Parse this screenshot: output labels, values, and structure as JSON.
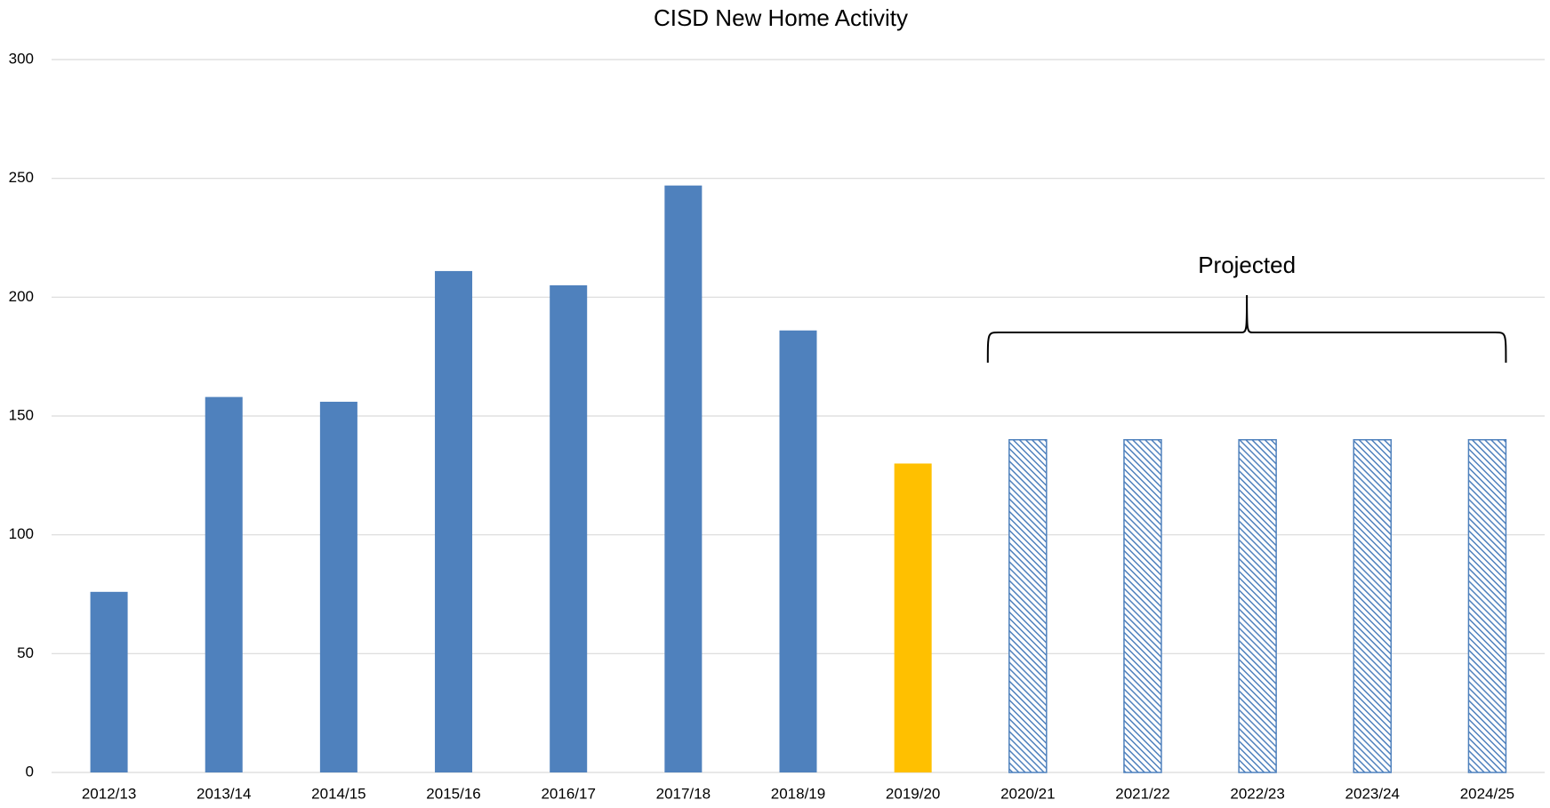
{
  "chart_data": {
    "type": "bar",
    "title": "CISD New Home Activity",
    "categories": [
      "2012/13",
      "2013/14",
      "2014/15",
      "2015/16",
      "2016/17",
      "2017/18",
      "2018/19",
      "2019/20",
      "2020/21",
      "2021/22",
      "2022/23",
      "2023/24",
      "2024/25"
    ],
    "values": [
      76,
      158,
      156,
      211,
      205,
      247,
      186,
      130,
      140,
      140,
      140,
      140,
      140
    ],
    "colors": [
      "#4f81bd",
      "#4f81bd",
      "#4f81bd",
      "#4f81bd",
      "#4f81bd",
      "#4f81bd",
      "#4f81bd",
      "#ffc000",
      "#4f81bd",
      "#4f81bd",
      "#4f81bd",
      "#4f81bd",
      "#4f81bd"
    ],
    "styles": [
      "solid",
      "solid",
      "solid",
      "solid",
      "solid",
      "solid",
      "solid",
      "solid",
      "hatched",
      "hatched",
      "hatched",
      "hatched",
      "hatched"
    ],
    "annotation": "Projected",
    "ylim": [
      0,
      300
    ],
    "yticks": [
      0,
      50,
      100,
      150,
      200,
      250,
      300
    ],
    "grid": true
  }
}
